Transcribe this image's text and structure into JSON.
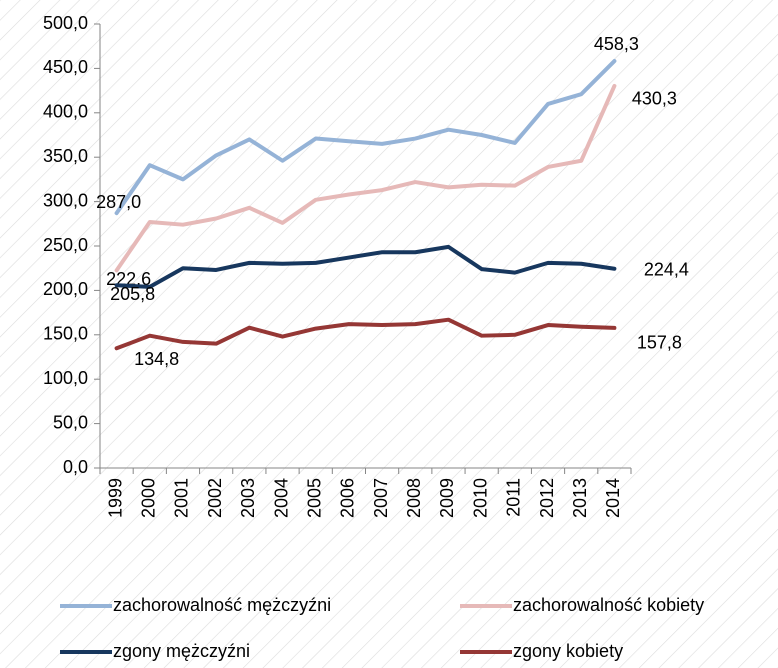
{
  "chart_data": {
    "type": "line",
    "categories": [
      "1999",
      "2000",
      "2001",
      "2002",
      "2003",
      "2004",
      "2005",
      "2006",
      "2007",
      "2008",
      "2009",
      "2010",
      "2011",
      "2012",
      "2013",
      "2014"
    ],
    "series": [
      {
        "name": "zachorowalność mężczyźni",
        "color": "#95b3d7",
        "values": [
          287.0,
          341,
          325,
          352,
          370,
          346,
          371,
          368,
          365,
          371,
          381,
          375,
          366,
          410,
          421,
          458.3
        ],
        "value_labels": [
          "287,0",
          null,
          null,
          null,
          null,
          null,
          null,
          null,
          null,
          null,
          null,
          null,
          null,
          null,
          null,
          "458,3"
        ]
      },
      {
        "name": "zachorowalność kobiety",
        "color": "#e6b9b8",
        "values": [
          222.6,
          277,
          274,
          281,
          293,
          276,
          302,
          308,
          313,
          322,
          316,
          319,
          318,
          339,
          346,
          430.3
        ],
        "value_labels": [
          "222,6",
          null,
          null,
          null,
          null,
          null,
          null,
          null,
          null,
          null,
          null,
          null,
          null,
          null,
          null,
          "430,3"
        ]
      },
      {
        "name": "zgony mężczyźni",
        "color": "#17375e",
        "values": [
          205.8,
          204,
          225,
          223,
          231,
          230,
          231,
          237,
          243,
          243,
          249,
          224,
          220,
          231,
          230,
          224.4
        ],
        "value_labels": [
          "205,8",
          null,
          null,
          null,
          null,
          null,
          null,
          null,
          null,
          null,
          null,
          null,
          null,
          null,
          null,
          "224,4"
        ]
      },
      {
        "name": "zgony kobiety",
        "color": "#953735",
        "values": [
          134.8,
          149,
          142,
          140,
          158,
          148,
          157,
          162,
          161,
          162,
          167,
          149,
          150,
          161,
          159,
          157.8
        ],
        "value_labels": [
          "134,8",
          null,
          null,
          null,
          null,
          null,
          null,
          null,
          null,
          null,
          null,
          null,
          null,
          null,
          null,
          "157,8"
        ]
      }
    ],
    "ylim": [
      0,
      500
    ],
    "yticks": [
      {
        "value": 0,
        "label": "0,0"
      },
      {
        "value": 50,
        "label": "50,0"
      },
      {
        "value": 100,
        "label": "100,0"
      },
      {
        "value": 150,
        "label": "150,0"
      },
      {
        "value": 200,
        "label": "200,0"
      },
      {
        "value": 250,
        "label": "250,0"
      },
      {
        "value": 300,
        "label": "300,0"
      },
      {
        "value": 350,
        "label": "350,0"
      },
      {
        "value": 400,
        "label": "400,0"
      },
      {
        "value": 450,
        "label": "450,0"
      },
      {
        "value": 500,
        "label": "500,0"
      }
    ],
    "grid": false,
    "legend": "bottom"
  }
}
